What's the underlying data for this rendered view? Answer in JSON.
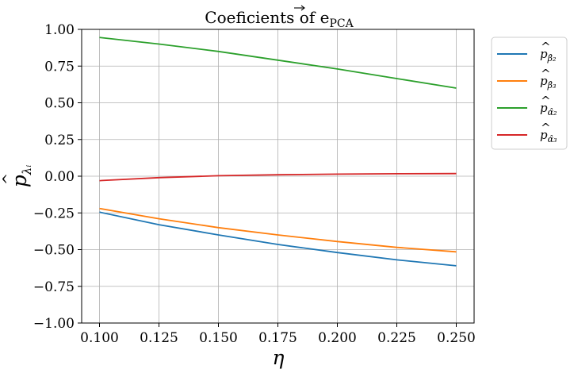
{
  "chart_data": {
    "type": "line",
    "title": "Coeficients of e",
    "title_subscript": "PCA",
    "xlabel": "η",
    "ylabel": "p",
    "ylabel_subscript": "λᵢ",
    "xlim": [
      0.1,
      0.25
    ],
    "ylim": [
      -1.0,
      1.0
    ],
    "grid": true,
    "legend_position": "outside-right-top",
    "xticks": [
      0.1,
      0.125,
      0.15,
      0.175,
      0.2,
      0.225,
      0.25
    ],
    "xtick_labels": [
      "0.100",
      "0.125",
      "0.150",
      "0.175",
      "0.200",
      "0.225",
      "0.250"
    ],
    "yticks": [
      1.0,
      0.75,
      0.5,
      0.25,
      0.0,
      -0.25,
      -0.5,
      -0.75,
      -1.0
    ],
    "ytick_labels": [
      "1.00",
      "0.75",
      "0.50",
      "0.25",
      "0.00",
      "−0.25",
      "−0.50",
      "−0.75",
      "−1.00"
    ],
    "x": [
      0.1,
      0.125,
      0.15,
      0.175,
      0.2,
      0.225,
      0.25
    ],
    "series": [
      {
        "name": "p",
        "subscript": "β̂₂",
        "color": "#1f77b4",
        "values": [
          -0.245,
          -0.33,
          -0.4,
          -0.465,
          -0.52,
          -0.57,
          -0.61
        ]
      },
      {
        "name": "p",
        "subscript": "β̂₃",
        "color": "#ff7f0e",
        "values": [
          -0.22,
          -0.29,
          -0.35,
          -0.4,
          -0.445,
          -0.485,
          -0.515
        ]
      },
      {
        "name": "p",
        "subscript": "α̂₂",
        "color": "#2ca02c",
        "values": [
          0.945,
          0.9,
          0.85,
          0.79,
          0.73,
          0.665,
          0.6
        ]
      },
      {
        "name": "p",
        "subscript": "α̂₃",
        "color": "#d62728",
        "values": [
          -0.03,
          -0.01,
          0.003,
          0.01,
          0.014,
          0.017,
          0.018
        ]
      }
    ]
  }
}
